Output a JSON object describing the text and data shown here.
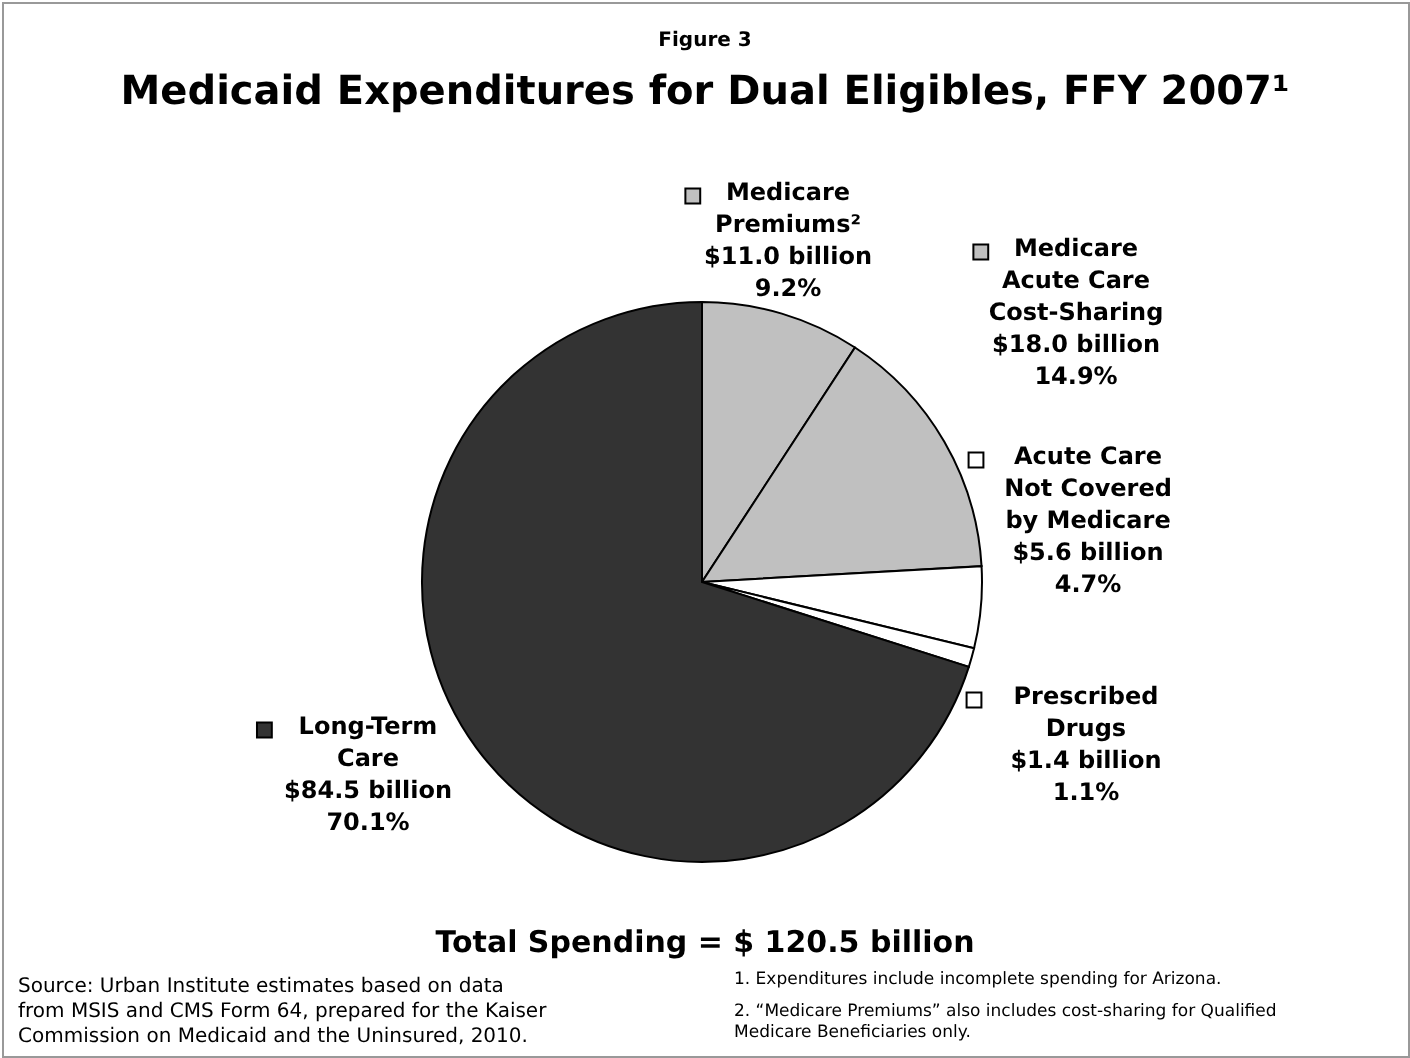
{
  "chart_data": {
    "type": "pie",
    "title": "Medicaid Expenditures for Dual Eligibles, FFY 2007¹",
    "categories": [
      "Medicare Premiums²",
      "Medicare Acute Care Cost-Sharing",
      "Acute Care Not Covered by Medicare",
      "Prescribed Drugs",
      "Long-Term Care"
    ],
    "values": [
      9.2,
      14.9,
      4.7,
      1.1,
      70.1
    ],
    "value_labels": [
      "$11.0 billion\n9.2%",
      "$18.0 billion\n14.9%",
      "$5.6 billion\n4.7%",
      "$1.4 billion\n1.1%",
      "$84.5 billion\n70.1%"
    ],
    "colors": [
      "#c0c0c0",
      "#c0c0c0",
      "#ffffff",
      "#ffffff",
      "#333333"
    ],
    "legend": "right",
    "annotations": [
      "Figure 3",
      "Total Spending = $ 120.5 billion",
      "Source: Urban Institute estimates based on data from MSIS and CMS Form 64, prepared for the Kaiser Commission on Medicaid and the Uninsured, 2010.",
      "1. Expenditures include incomplete spending for Arizona.",
      "2. “Medicare Premiums” also includes cost-sharing for Qualified Medicare Beneficiaries only."
    ]
  }
}
